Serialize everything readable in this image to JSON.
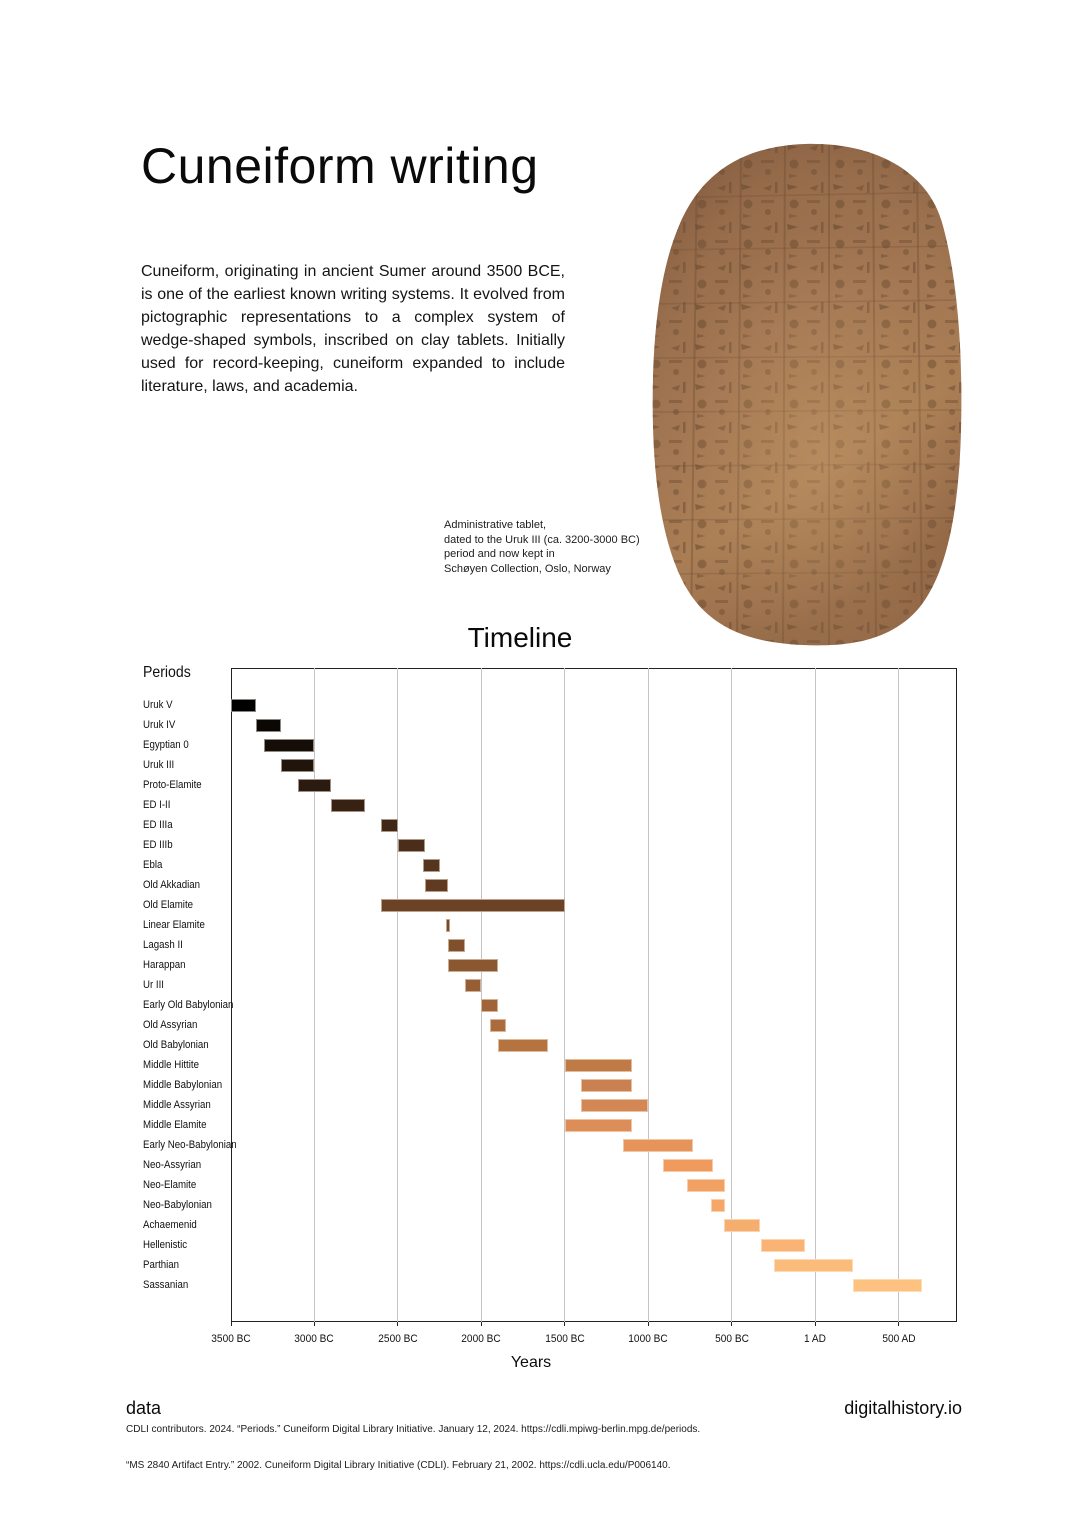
{
  "page": {
    "title": "Cuneiform writing",
    "intro": "Cuneiform, originating in ancient Sumer around 3500 BCE, is one of the earliest known writing systems. It evolved from pictographic representations to a complex system of wedge-shaped symbols, inscribed on clay tablets. Initially used for record-keeping, cuneiform expanded to include literature, laws, and academia.",
    "caption_lines": [
      "Administrative tablet,",
      "dated to the Uruk III (ca. 3200-3000 BC)",
      "period and now kept in",
      "Schøyen Collection, Oslo, Norway"
    ],
    "footer": {
      "left": "data",
      "right": "digitalhistory.io",
      "citations": [
        "CDLI contributors. 2024. “Periods.” Cuneiform Digital Library Initiative. January 12, 2024. https://cdli.mpiwg-berlin.mpg.de/periods.",
        "“MS 2840 Artifact Entry.” 2002. Cuneiform Digital Library Initiative (CDLI). February 21, 2002. https://cdli.ucla.edu/P006140."
      ]
    }
  },
  "chart_data": {
    "type": "bar",
    "subtype": "horizontal-gantt-timeline",
    "title": "Timeline",
    "ylabel_heading": "Periods",
    "xlabel": "Years",
    "grid": true,
    "xlim": [
      -3500,
      850
    ],
    "xticks": [
      {
        "value": -3500,
        "label": "3500 BC"
      },
      {
        "value": -3000,
        "label": "3000 BC"
      },
      {
        "value": -2500,
        "label": "2500 BC"
      },
      {
        "value": -2000,
        "label": "2000 BC"
      },
      {
        "value": -1500,
        "label": "1500 BC"
      },
      {
        "value": -1000,
        "label": "1000 BC"
      },
      {
        "value": -500,
        "label": "500 BC"
      },
      {
        "value": 1,
        "label": "1 AD"
      },
      {
        "value": 500,
        "label": "500 AD"
      }
    ],
    "periods": [
      {
        "name": "Uruk V",
        "start": -3500,
        "end": -3350,
        "color": "#000000"
      },
      {
        "name": "Uruk IV",
        "start": -3350,
        "end": -3200,
        "color": "#0b0704"
      },
      {
        "name": "Egyptian 0",
        "start": -3300,
        "end": -3000,
        "color": "#150d08"
      },
      {
        "name": "Uruk III",
        "start": -3200,
        "end": -3000,
        "color": "#20140b"
      },
      {
        "name": "Proto-Elamite",
        "start": -3100,
        "end": -2900,
        "color": "#2b1a0f"
      },
      {
        "name": "ED I-II",
        "start": -2900,
        "end": -2700,
        "color": "#362113"
      },
      {
        "name": "ED IIIa",
        "start": -2600,
        "end": -2500,
        "color": "#402817"
      },
      {
        "name": "ED IIIb",
        "start": -2500,
        "end": -2340,
        "color": "#4b2e1a"
      },
      {
        "name": "Ebla",
        "start": -2350,
        "end": -2250,
        "color": "#56351e"
      },
      {
        "name": "Old Akkadian",
        "start": -2340,
        "end": -2200,
        "color": "#603b22"
      },
      {
        "name": "Old Elamite",
        "start": -2600,
        "end": -1500,
        "color": "#6b4226"
      },
      {
        "name": "Linear Elamite",
        "start": -2210,
        "end": -2190,
        "color": "#764929"
      },
      {
        "name": "Lagash II",
        "start": -2200,
        "end": -2100,
        "color": "#80502d"
      },
      {
        "name": "Harappan",
        "start": -2200,
        "end": -1900,
        "color": "#8b5731"
      },
      {
        "name": "Ur III",
        "start": -2100,
        "end": -2000,
        "color": "#965e35"
      },
      {
        "name": "Early Old Babylonian",
        "start": -2000,
        "end": -1900,
        "color": "#a06438"
      },
      {
        "name": "Old Assyrian",
        "start": -1950,
        "end": -1850,
        "color": "#ab6b3c"
      },
      {
        "name": "Old Babylonian",
        "start": -1900,
        "end": -1600,
        "color": "#b57340"
      },
      {
        "name": "Middle Hittite",
        "start": -1500,
        "end": -1100,
        "color": "#c07a46"
      },
      {
        "name": "Middle Babylonian",
        "start": -1400,
        "end": -1100,
        "color": "#ca8151"
      },
      {
        "name": "Middle Assyrian",
        "start": -1400,
        "end": -1000,
        "color": "#d38755"
      },
      {
        "name": "Middle Elamite",
        "start": -1500,
        "end": -1100,
        "color": "#dd8e58"
      },
      {
        "name": "Early Neo-Babylonian",
        "start": -1150,
        "end": -730,
        "color": "#e7945b"
      },
      {
        "name": "Neo-Assyrian",
        "start": -911,
        "end": -612,
        "color": "#f09a5e"
      },
      {
        "name": "Neo-Elamite",
        "start": -770,
        "end": -539,
        "color": "#f2a164"
      },
      {
        "name": "Neo-Babylonian",
        "start": -626,
        "end": -539,
        "color": "#f4a769"
      },
      {
        "name": "Achaemenid",
        "start": -547,
        "end": -331,
        "color": "#f6ae6f"
      },
      {
        "name": "Hellenistic",
        "start": -323,
        "end": -63,
        "color": "#f9b475"
      },
      {
        "name": "Parthian",
        "start": -247,
        "end": 224,
        "color": "#fbbb7a"
      },
      {
        "name": "Sassanian",
        "start": 224,
        "end": 641,
        "color": "#fdc180"
      }
    ]
  }
}
